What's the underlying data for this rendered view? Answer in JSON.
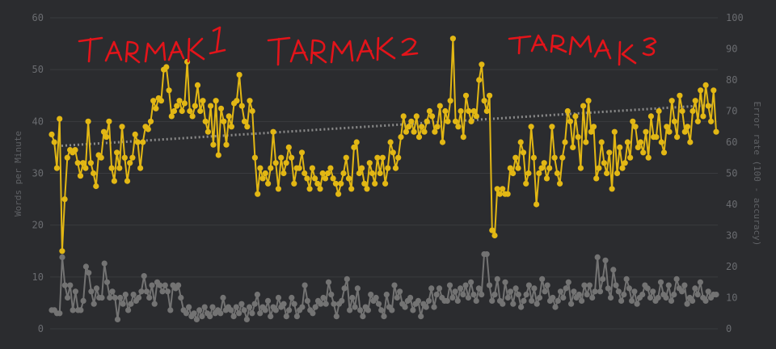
{
  "chart_data": {
    "type": "line",
    "y_left": {
      "label": "Words per Minute",
      "range": [
        0,
        60
      ],
      "ticks": [
        "0",
        "10",
        "20",
        "30",
        "40",
        "50",
        "60"
      ]
    },
    "y_right": {
      "label": "Error rate (100 - accuracy)",
      "range": [
        0,
        100
      ],
      "ticks": [
        "0",
        "10",
        "20",
        "30",
        "40",
        "50",
        "60",
        "70",
        "80",
        "90",
        "100"
      ]
    },
    "grid": true,
    "annotations": [
      {
        "text": "TARMAK 1",
        "style": "handwritten",
        "color": "#e3141a"
      },
      {
        "text": "TARMAK 2",
        "style": "handwritten",
        "color": "#e3141a"
      },
      {
        "text": "TARMAK 3",
        "style": "handwritten",
        "color": "#e3141a"
      }
    ],
    "series": [
      {
        "axis": "left",
        "color": "#e2b714",
        "style": "line-markers",
        "values": [
          37.5,
          36,
          31,
          40.5,
          15,
          25,
          33,
          34.5,
          34,
          34.5,
          32,
          29.5,
          32,
          31,
          40,
          32,
          30,
          27.5,
          33.5,
          33,
          38,
          37,
          40,
          31,
          28.5,
          34,
          31,
          39,
          33,
          28.5,
          32,
          33,
          37.5,
          36,
          31,
          36,
          39,
          38.5,
          40,
          44,
          42.5,
          44.5,
          44,
          50,
          50.5,
          46,
          41,
          42,
          43,
          44,
          42,
          43.5,
          51.5,
          42,
          41,
          43,
          47,
          42,
          44,
          40,
          38,
          43,
          35.5,
          44,
          33.5,
          42.5,
          40,
          35.5,
          41,
          39,
          43.5,
          44,
          49,
          43,
          40,
          39,
          44,
          42,
          33,
          26,
          31,
          29,
          30,
          28,
          31,
          38,
          32,
          27,
          33,
          30,
          32,
          35,
          33,
          28,
          31,
          31,
          34,
          30,
          29,
          27,
          31,
          29,
          28,
          27,
          30,
          29,
          30,
          31,
          29,
          28,
          26,
          28,
          30,
          33,
          29,
          27,
          35,
          36,
          30,
          31,
          28,
          27,
          32,
          30,
          28,
          33,
          30,
          33,
          28,
          31,
          36,
          34,
          31,
          33,
          37,
          41,
          38,
          39,
          40,
          38,
          41,
          37,
          39,
          38,
          40,
          42,
          41,
          38,
          39,
          43,
          36,
          42,
          40,
          44,
          56,
          40,
          39,
          42,
          37,
          45,
          42,
          40,
          42,
          41,
          48,
          51,
          44,
          42,
          45,
          19,
          18,
          27,
          26,
          27,
          26,
          26,
          31,
          30,
          33,
          31,
          36,
          34,
          28,
          30,
          39,
          33,
          24,
          30,
          31,
          32,
          29,
          31,
          39,
          33,
          30,
          28,
          33,
          36,
          42,
          40,
          35,
          41,
          37,
          31,
          43,
          36,
          44,
          38,
          39,
          29,
          31,
          36,
          32,
          30,
          34,
          27,
          38,
          30,
          35,
          31,
          32,
          36,
          33,
          40,
          39,
          35,
          36,
          34,
          38,
          33,
          41,
          37,
          37,
          42,
          36,
          34,
          39,
          38,
          44,
          40,
          37,
          45,
          42,
          38,
          39,
          36,
          42,
          44,
          40,
          46,
          41,
          47,
          43,
          40,
          46,
          38
        ],
        "trend": [
          35.3,
          43.2
        ]
      },
      {
        "axis": "right",
        "color": "#737373",
        "style": "line-markers",
        "values": [
          6,
          6,
          5,
          5,
          23,
          14,
          10,
          14,
          6,
          12,
          6,
          6,
          9,
          20,
          18,
          12,
          8,
          13,
          10,
          10,
          21,
          15,
          10,
          12,
          10,
          3,
          10,
          8,
          11,
          6,
          8,
          11,
          9,
          10,
          12,
          17,
          12,
          10,
          14,
          8,
          15,
          14,
          12,
          14,
          12,
          6,
          14,
          13,
          14,
          10,
          6,
          5,
          7,
          4,
          5,
          3,
          6,
          4,
          7,
          5,
          4,
          7,
          5,
          6,
          5,
          10,
          6,
          7,
          6,
          4,
          7,
          5,
          8,
          6,
          3,
          7,
          5,
          8,
          11,
          5,
          7,
          6,
          9,
          4,
          7,
          6,
          10,
          7,
          8,
          4,
          6,
          10,
          8,
          4,
          6,
          7,
          14,
          9,
          6,
          5,
          7,
          9,
          8,
          10,
          8,
          15,
          11,
          8,
          4,
          8,
          9,
          13,
          16,
          6,
          10,
          7,
          13,
          6,
          4,
          7,
          6,
          11,
          9,
          10,
          8,
          6,
          4,
          11,
          7,
          6,
          14,
          10,
          12,
          8,
          7,
          9,
          10,
          6,
          8,
          9,
          4,
          8,
          7,
          9,
          13,
          7,
          11,
          13,
          10,
          9,
          9,
          14,
          10,
          12,
          9,
          13,
          11,
          14,
          10,
          15,
          11,
          9,
          13,
          11,
          24,
          24,
          14,
          9,
          11,
          16,
          9,
          8,
          15,
          10,
          12,
          8,
          13,
          11,
          7,
          9,
          11,
          14,
          9,
          13,
          8,
          10,
          16,
          12,
          14,
          9,
          10,
          7,
          9,
          12,
          10,
          13,
          15,
          8,
          12,
          10,
          11,
          9,
          14,
          11,
          14,
          10,
          12,
          23,
          12,
          16,
          22,
          13,
          10,
          19,
          14,
          12,
          9,
          11,
          16,
          13,
          9,
          12,
          8,
          10,
          11,
          14,
          13,
          10,
          12,
          9,
          10,
          15,
          11,
          10,
          14,
          9,
          11,
          16,
          13,
          12,
          14,
          8,
          10,
          9,
          13,
          11,
          15,
          10,
          9,
          12,
          10,
          11,
          11
        ],
        "note": "extends left-axis scale (values read against 0-60 left axis scaled to 0-100 right)"
      }
    ]
  }
}
